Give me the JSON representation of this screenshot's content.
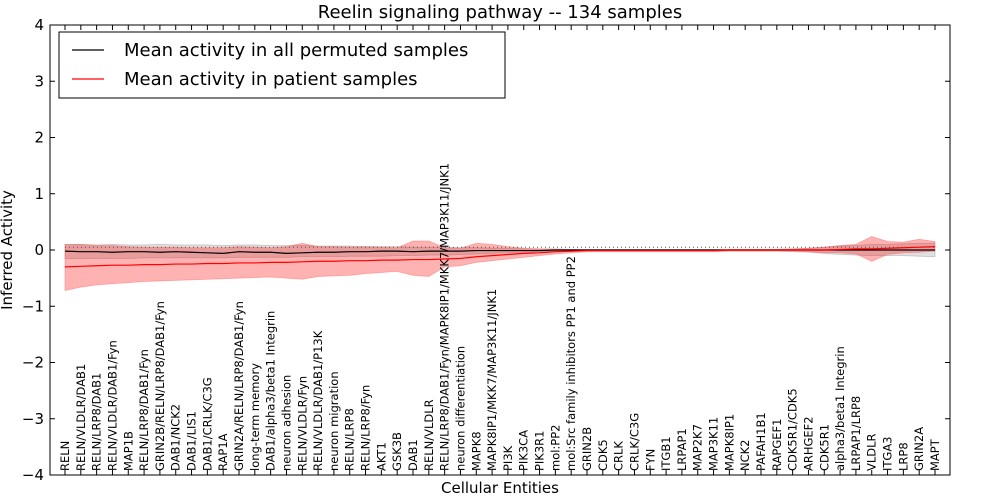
{
  "chart_data": {
    "type": "line",
    "title": "Reelin signaling pathway -- 134 samples",
    "xlabel": "Cellular Entities",
    "ylabel": "Inferred Activity",
    "ylim": [
      -4,
      4
    ],
    "yticks": [
      -4,
      -3,
      -2,
      -1,
      0,
      1,
      2,
      3,
      4
    ],
    "ytick_labels": [
      "−4",
      "−3",
      "−2",
      "−1",
      "0",
      "1",
      "2",
      "3",
      "4"
    ],
    "legend_position": "top-left",
    "categories": [
      "RELN",
      "RELN/VLDLR/DAB1",
      "RELN/LRP8/DAB1",
      "RELN/VLDLR/DAB1/Fyn",
      "MAP1B",
      "RELN/LRP8/DAB1/Fyn",
      "GRIN2B/RELN/LRP8/DAB1/Fyn",
      "DAB1/NCK2",
      "DAB1/LIS1",
      "DAB1/CRLK/C3G",
      "RAP1A",
      "GRIN2A/RELN/LRP8/DAB1/Fyn",
      "long-term memory",
      "DAB1/alpha3/beta1 Integrin",
      "neuron adhesion",
      "RELN/VLDLR/Fyn",
      "RELN/VLDLR/DAB1/P13K",
      "neuron migration",
      "RELN/LRP8",
      "RELN/LRP8/Fyn",
      "AKT1",
      "GSK3B",
      "DAB1",
      "RELN/VLDLR",
      "RELN/LRP8/DAB1/Fyn/MAPK8IP1/MKK7/MAP3K11/JNK1",
      "neuron differentiation",
      "MAPK8",
      "MAPK8IP1/MKK7/MAP3K11/JNK1",
      "PI3K",
      "PIK3CA",
      "PIK3R1",
      "mol:PP2",
      "mol:Src family inhibitors PP1 and PP2",
      "GRIN2B",
      "CDK5",
      "CRLK",
      "CRLK/C3G",
      "FYN",
      "ITGB1",
      "LRPAP1",
      "MAP2K7",
      "MAP3K11",
      "MAPK8IP1",
      "NCK2",
      "PAFAH1B1",
      "RAPGEF1",
      "CDK5R1/CDK5",
      "ARHGEF2",
      "CDK5R1",
      "alpha3/beta1 Integrin",
      "LRPAP1/LRP8",
      "VLDLR",
      "ITGA3",
      "LRP8",
      "GRIN2A",
      "MAPT"
    ],
    "series": [
      {
        "name": "Mean activity in all permuted samples",
        "color": "#000000",
        "values": [
          -0.02,
          -0.03,
          -0.03,
          -0.04,
          -0.03,
          -0.03,
          -0.04,
          -0.03,
          -0.04,
          -0.05,
          -0.06,
          -0.03,
          -0.04,
          -0.04,
          -0.06,
          -0.05,
          -0.04,
          -0.04,
          -0.03,
          -0.03,
          -0.02,
          -0.02,
          -0.03,
          -0.02,
          -0.02,
          -0.02,
          -0.01,
          -0.01,
          -0.01,
          -0.01,
          -0.01,
          0.0,
          0.0,
          0.0,
          0.0,
          0.0,
          0.0,
          0.0,
          0.0,
          0.0,
          0.0,
          0.0,
          0.0,
          0.0,
          0.0,
          0.0,
          0.0,
          0.0,
          0.0,
          0.0,
          0.0,
          0.0,
          0.0,
          0.0,
          0.0,
          0.0
        ],
        "band_upper": [
          0.1,
          0.1,
          0.09,
          0.1,
          0.09,
          0.09,
          0.1,
          0.09,
          0.09,
          0.09,
          0.08,
          0.09,
          0.09,
          0.08,
          0.08,
          0.08,
          0.07,
          0.07,
          0.07,
          0.06,
          0.06,
          0.06,
          0.05,
          0.05,
          0.05,
          0.04,
          0.04,
          0.03,
          0.03,
          0.02,
          0.02,
          0.02,
          0.01,
          0.01,
          0.01,
          0.01,
          0.01,
          0.01,
          0.01,
          0.01,
          0.01,
          0.01,
          0.01,
          0.01,
          0.01,
          0.01,
          0.02,
          0.03,
          0.05,
          0.07,
          0.08,
          0.1,
          0.1,
          0.11,
          0.12,
          0.12
        ],
        "band_lower": [
          -0.15,
          -0.15,
          -0.15,
          -0.15,
          -0.15,
          -0.14,
          -0.14,
          -0.14,
          -0.14,
          -0.14,
          -0.14,
          -0.13,
          -0.13,
          -0.13,
          -0.13,
          -0.12,
          -0.12,
          -0.12,
          -0.11,
          -0.11,
          -0.11,
          -0.1,
          -0.1,
          -0.09,
          -0.09,
          -0.08,
          -0.07,
          -0.06,
          -0.05,
          -0.04,
          -0.03,
          -0.02,
          -0.02,
          -0.02,
          -0.02,
          -0.02,
          -0.02,
          -0.02,
          -0.02,
          -0.02,
          -0.02,
          -0.02,
          -0.02,
          -0.02,
          -0.02,
          -0.02,
          -0.03,
          -0.04,
          -0.06,
          -0.08,
          -0.09,
          -0.1,
          -0.1,
          -0.1,
          -0.11,
          -0.12
        ]
      },
      {
        "name": "Mean activity in patient samples",
        "color": "#ff0000",
        "values": [
          -0.3,
          -0.29,
          -0.28,
          -0.27,
          -0.27,
          -0.26,
          -0.26,
          -0.25,
          -0.25,
          -0.24,
          -0.24,
          -0.23,
          -0.23,
          -0.22,
          -0.22,
          -0.21,
          -0.2,
          -0.2,
          -0.19,
          -0.19,
          -0.18,
          -0.18,
          -0.17,
          -0.17,
          -0.16,
          -0.15,
          -0.12,
          -0.1,
          -0.08,
          -0.06,
          -0.05,
          -0.03,
          -0.02,
          -0.01,
          -0.01,
          -0.01,
          -0.01,
          -0.01,
          -0.01,
          -0.01,
          -0.01,
          -0.01,
          0.0,
          0.0,
          0.0,
          0.0,
          0.0,
          0.0,
          0.0,
          0.01,
          0.02,
          0.02,
          0.03,
          0.04,
          0.05,
          0.06
        ],
        "band_upper": [
          0.1,
          0.1,
          0.08,
          0.08,
          0.06,
          0.05,
          0.05,
          0.05,
          0.04,
          0.04,
          0.04,
          0.06,
          0.05,
          0.04,
          0.06,
          0.12,
          0.06,
          0.06,
          0.05,
          0.06,
          0.05,
          0.04,
          0.16,
          0.16,
          0.04,
          0.03,
          0.12,
          0.1,
          0.06,
          0.03,
          0.02,
          0.01,
          0.01,
          0.0,
          0.0,
          0.0,
          0.0,
          0.0,
          0.0,
          0.0,
          0.0,
          0.0,
          0.01,
          0.01,
          0.01,
          0.01,
          0.02,
          0.03,
          0.05,
          0.08,
          0.1,
          0.24,
          0.15,
          0.14,
          0.19,
          0.15
        ],
        "band_lower": [
          -0.72,
          -0.66,
          -0.62,
          -0.6,
          -0.58,
          -0.56,
          -0.55,
          -0.54,
          -0.53,
          -0.52,
          -0.51,
          -0.5,
          -0.49,
          -0.48,
          -0.5,
          -0.52,
          -0.47,
          -0.46,
          -0.45,
          -0.42,
          -0.4,
          -0.38,
          -0.45,
          -0.47,
          -0.3,
          -0.28,
          -0.22,
          -0.19,
          -0.16,
          -0.13,
          -0.1,
          -0.07,
          -0.05,
          -0.03,
          -0.03,
          -0.03,
          -0.03,
          -0.03,
          -0.03,
          -0.03,
          -0.03,
          -0.03,
          -0.02,
          -0.02,
          -0.02,
          -0.02,
          -0.02,
          -0.03,
          -0.05,
          -0.05,
          -0.07,
          -0.2,
          -0.08,
          -0.05,
          -0.04,
          -0.02
        ]
      }
    ],
    "dotted_reference": {
      "values_upper": 0.05,
      "values_lower": -0.05
    }
  }
}
